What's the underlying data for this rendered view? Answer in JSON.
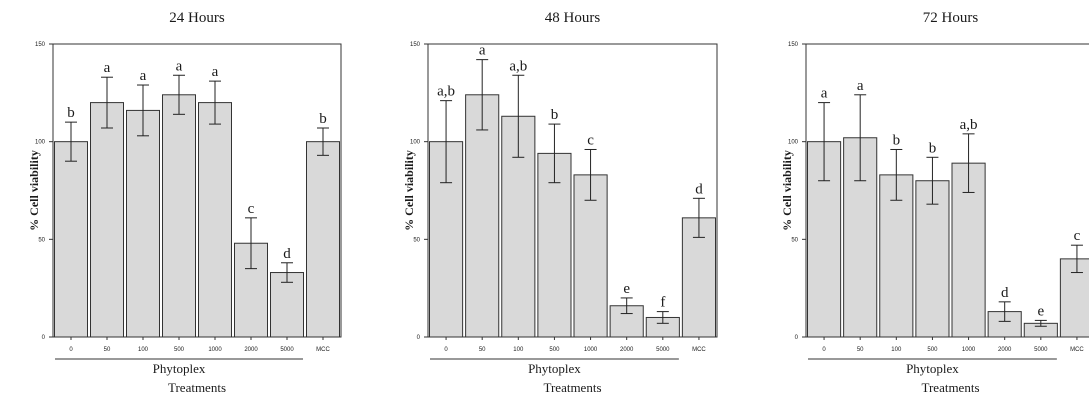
{
  "chart_data": [
    {
      "type": "bar",
      "title": "24 Hours",
      "ylabel": "% Cell viability",
      "group_label": "Phytoplex",
      "xlabel": "Treatments",
      "ylim": [
        0,
        150
      ],
      "yticks": [
        0,
        50,
        100,
        150
      ],
      "categories": [
        "0",
        "50",
        "100",
        "500",
        "1000",
        "2000",
        "5000",
        "MCC"
      ],
      "values": [
        100,
        120,
        116,
        124,
        120,
        48,
        33,
        100
      ],
      "error": [
        10,
        13,
        13,
        10,
        11,
        13,
        5,
        7
      ],
      "letters": [
        "b",
        "a",
        "a",
        "a",
        "a",
        "c",
        "d",
        "b"
      ],
      "group_span": [
        0,
        6
      ],
      "grid": false,
      "bar_color": "#d9d9d9"
    },
    {
      "type": "bar",
      "title": "48 Hours",
      "ylabel": "% Cell viability",
      "group_label": "Phytoplex",
      "xlabel": "Treatments",
      "ylim": [
        0,
        150
      ],
      "yticks": [
        0,
        50,
        100,
        150
      ],
      "categories": [
        "0",
        "50",
        "100",
        "500",
        "1000",
        "2000",
        "5000",
        "MCC"
      ],
      "values": [
        100,
        124,
        113,
        94,
        83,
        16,
        10,
        61
      ],
      "error": [
        21,
        18,
        21,
        15,
        13,
        4,
        3,
        10
      ],
      "letters": [
        "a,b",
        "a",
        "a,b",
        "b",
        "c",
        "e",
        "f",
        "d"
      ],
      "group_span": [
        0,
        6
      ],
      "grid": false,
      "bar_color": "#d9d9d9"
    },
    {
      "type": "bar",
      "title": "72 Hours",
      "ylabel": "% Cell viability",
      "group_label": "Phytoplex",
      "xlabel": "Treatments",
      "ylim": [
        0,
        150
      ],
      "yticks": [
        0,
        50,
        100,
        150
      ],
      "categories": [
        "0",
        "50",
        "100",
        "500",
        "1000",
        "2000",
        "5000",
        "MCC"
      ],
      "values": [
        100,
        102,
        83,
        80,
        89,
        13,
        7,
        40
      ],
      "error": [
        20,
        22,
        13,
        12,
        15,
        5,
        1.5,
        7
      ],
      "letters": [
        "a",
        "a",
        "b",
        "b",
        "a,b",
        "d",
        "e",
        "c"
      ],
      "group_span": [
        0,
        6
      ],
      "grid": false,
      "bar_color": "#d9d9d9"
    }
  ]
}
